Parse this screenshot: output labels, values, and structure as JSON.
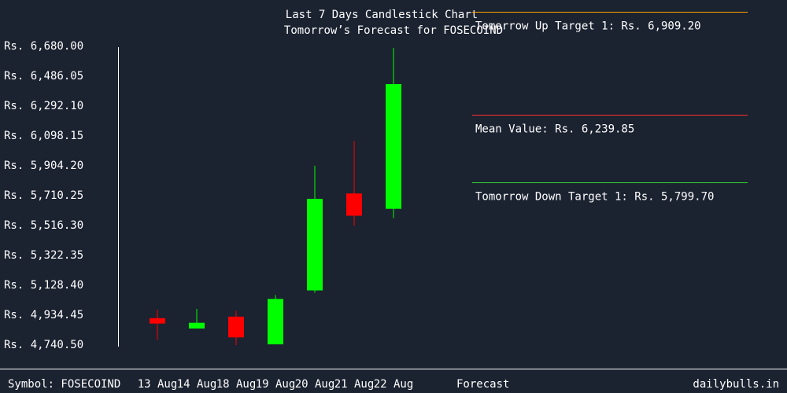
{
  "chart_data": {
    "type": "candlestick",
    "title": "Last 7 Days Candlestick Chart",
    "subtitle": "Tomorrow’s Forecast for FOSECOIND",
    "y_ticks": [
      "Rs. 6,680.00",
      "Rs. 6,486.05",
      "Rs. 6,292.10",
      "Rs. 6,098.15",
      "Rs. 5,904.20",
      "Rs. 5,710.25",
      "Rs. 5,516.30",
      "Rs. 5,322.35",
      "Rs. 5,128.40",
      "Rs. 4,934.45",
      "Rs. 4,740.50"
    ],
    "ylim": [
      4740.5,
      6680.0
    ],
    "categories": [
      "13 Aug",
      "14 Aug",
      "18 Aug",
      "19 Aug",
      "20 Aug",
      "21 Aug",
      "22 Aug"
    ],
    "candles": [
      {
        "open": 4910,
        "close": 4875,
        "high": 4965,
        "low": 4770
      },
      {
        "open": 4843,
        "close": 4880,
        "high": 4970,
        "low": 4843
      },
      {
        "open": 4920,
        "close": 4785,
        "high": 4958,
        "low": 4735
      },
      {
        "open": 4740,
        "close": 5035,
        "high": 5060,
        "low": 4740
      },
      {
        "open": 5090,
        "close": 5685,
        "high": 5900,
        "low": 5075
      },
      {
        "open": 5720,
        "close": 5575,
        "high": 6060,
        "low": 5510
      },
      {
        "open": 5620,
        "close": 6430,
        "high": 6665,
        "low": 5560
      }
    ],
    "up_color": "#00ff00",
    "down_color": "#ff0000",
    "forecast": {
      "label": "Forecast",
      "lines": [
        {
          "label": "Tomorrow Up Target 1: Rs. 6,909.20",
          "value": 6909.2,
          "color": "#ffa500"
        },
        {
          "label": "Mean Value: Rs. 6,239.85",
          "value": 6239.85,
          "color": "#ff3030"
        },
        {
          "label": "Tomorrow Down Target 1: Rs. 5,799.70",
          "value": 5799.7,
          "color": "#33dd33"
        }
      ]
    }
  },
  "footer": {
    "symbol": "Symbol: FOSECOIND",
    "brand": "dailybulls.in"
  }
}
